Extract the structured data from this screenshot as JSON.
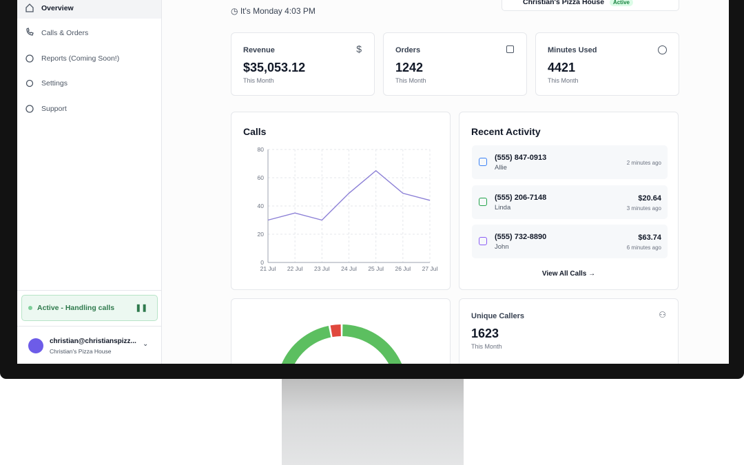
{
  "nav": {
    "items": [
      "Overview",
      "Calls & Orders",
      "Reports (Coming Soon!)",
      "Settings",
      "Support"
    ]
  },
  "status": "Active - Handling calls",
  "user": {
    "email": "christian@christianspizz...",
    "business": "Christian's Pizza House"
  },
  "header": {
    "subtitle": "It's Monday 4:03 PM",
    "location": "Christian's Pizza House",
    "location_status": "Active"
  },
  "stats": [
    {
      "label": "Revenue",
      "value": "$35,053.12",
      "period": "This Month"
    },
    {
      "label": "Orders",
      "value": "1242",
      "period": "This Month"
    },
    {
      "label": "Minutes Used",
      "value": "4421",
      "period": "This Month"
    }
  ],
  "recent_activity": {
    "title": "Recent Activity",
    "items": [
      {
        "phone": "(555) 847-0913",
        "name": "Allie",
        "time": "2 minutes ago"
      },
      {
        "phone": "(555) 206-7148",
        "name": "Linda",
        "amount": "$20.64",
        "time": "3 minutes ago"
      },
      {
        "phone": "(555) 732-8890",
        "name": "John",
        "amount": "$63.74",
        "time": "6 minutes ago"
      }
    ],
    "link": "View All Calls"
  },
  "unique_callers": {
    "label": "Unique Callers",
    "value": "1623",
    "period": "This Month"
  },
  "chart_data": [
    {
      "type": "line",
      "title": "Calls",
      "categories": [
        "21 Jul",
        "22 Jul",
        "23 Jul",
        "24 Jul",
        "25 Jul",
        "26 Jul",
        "27 Jul"
      ],
      "values": [
        30,
        35,
        30,
        49,
        65,
        49,
        44
      ],
      "color": "#8b7fd6",
      "ylim": [
        0,
        80
      ],
      "yticks": [
        0,
        20,
        40,
        60,
        80
      ],
      "grid": true
    },
    {
      "type": "pie",
      "donut": true,
      "values": [
        97,
        3
      ],
      "colors": [
        "#5cbf60",
        "#e0483d"
      ]
    }
  ]
}
